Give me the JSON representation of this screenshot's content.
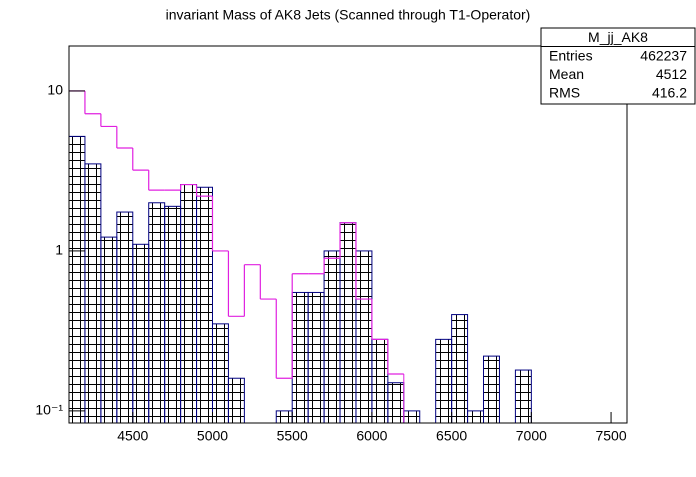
{
  "chart_data": {
    "type": "histogram",
    "title": "invariant Mass of AK8 Jets (Scanned through T1-Operator)",
    "bins": [
      4100,
      4200,
      4300,
      4400,
      4500,
      4600,
      4700,
      4800,
      4900,
      5000,
      5100,
      5200,
      5300,
      5400,
      5500,
      5600,
      5700,
      5800,
      5900,
      6000,
      6100,
      6200,
      6300,
      6400,
      6500,
      6600,
      6700,
      6800,
      6900,
      7000,
      7100,
      7200,
      7300,
      7400,
      7500,
      7600
    ],
    "series": [
      {
        "color": "#000080",
        "hatch": true,
        "values": [
          5.2,
          3.5,
          1.22,
          1.75,
          1.1,
          2.0,
          1.9,
          2.6,
          2.5,
          0.35,
          0.16,
          null,
          null,
          0.1,
          0.55,
          0.55,
          1.0,
          1.5,
          1.0,
          0.28,
          0.15,
          0.1,
          null,
          0.28,
          0.4,
          0.1,
          0.22,
          null,
          0.18,
          null,
          null,
          null,
          null,
          null,
          null
        ]
      },
      {
        "color": "#e020e0",
        "hatch": false,
        "values": [
          10,
          7.2,
          6.0,
          4.4,
          3.2,
          2.4,
          2.4,
          2.6,
          2.2,
          1.0,
          0.39,
          0.82,
          0.5,
          0.16,
          0.72,
          0.72,
          0.9,
          1.5,
          0.5,
          0.28,
          0.17,
          null,
          null,
          null,
          null,
          null,
          null,
          null,
          null,
          null,
          null,
          null,
          null,
          null,
          null
        ]
      }
    ],
    "xlim": [
      4100,
      7600
    ],
    "xticks": [
      4500,
      5000,
      5500,
      6000,
      6500,
      7000,
      7500
    ],
    "ylim": [
      0.084,
      19.1
    ],
    "log_y": true,
    "yticks": [
      {
        "value": 0.1,
        "label": "10⁻¹"
      },
      1,
      10
    ],
    "stats": {
      "name": "M_jj_AK8",
      "rows": [
        {
          "label": "Entries",
          "value": "462237"
        },
        {
          "label": "Mean",
          "value": "4512"
        },
        {
          "label": "RMS",
          "value": "416.2"
        }
      ]
    }
  }
}
